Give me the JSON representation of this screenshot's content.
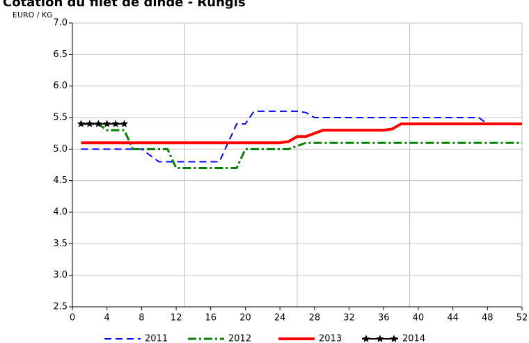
{
  "chart_data": {
    "type": "line",
    "title": "Cotation du filet de dinde - Rungis",
    "y_label": "EURO / KG",
    "x": [
      1,
      2,
      3,
      4,
      5,
      6,
      7,
      8,
      9,
      10,
      11,
      12,
      13,
      14,
      15,
      16,
      17,
      18,
      19,
      20,
      21,
      22,
      23,
      24,
      25,
      26,
      27,
      28,
      29,
      30,
      31,
      32,
      33,
      34,
      35,
      36,
      37,
      38,
      39,
      40,
      41,
      42,
      43,
      44,
      45,
      46,
      47,
      48,
      49,
      50,
      51,
      52
    ],
    "series": [
      {
        "name": "2011",
        "color": "#0000ff",
        "style": "dashed",
        "values": [
          5.0,
          5.0,
          5.0,
          5.0,
          5.0,
          5.0,
          5.0,
          5.0,
          4.9,
          4.8,
          4.8,
          4.8,
          4.8,
          4.8,
          4.8,
          4.8,
          4.8,
          5.1,
          5.4,
          5.4,
          5.6,
          5.6,
          5.6,
          5.6,
          5.6,
          5.6,
          5.58,
          5.5,
          5.5,
          5.5,
          5.5,
          5.5,
          5.5,
          5.5,
          5.5,
          5.5,
          5.5,
          5.5,
          5.5,
          5.5,
          5.5,
          5.5,
          5.5,
          5.5,
          5.5,
          5.5,
          5.5,
          5.4,
          5.4,
          5.4,
          5.4,
          5.4
        ]
      },
      {
        "name": "2012",
        "color": "#008000",
        "style": "dashdot",
        "values": [
          5.4,
          5.4,
          5.4,
          5.3,
          5.3,
          5.3,
          5.0,
          5.0,
          5.0,
          5.0,
          5.0,
          4.7,
          4.7,
          4.7,
          4.7,
          4.7,
          4.7,
          4.7,
          4.7,
          5.0,
          5.0,
          5.0,
          5.0,
          5.0,
          5.0,
          5.05,
          5.1,
          5.1,
          5.1,
          5.1,
          5.1,
          5.1,
          5.1,
          5.1,
          5.1,
          5.1,
          5.1,
          5.1,
          5.1,
          5.1,
          5.1,
          5.1,
          5.1,
          5.1,
          5.1,
          5.1,
          5.1,
          5.1,
          5.1,
          5.1,
          5.1,
          5.1
        ]
      },
      {
        "name": "2013",
        "color": "#ff0000",
        "style": "solid",
        "values": [
          5.1,
          5.1,
          5.1,
          5.1,
          5.1,
          5.1,
          5.1,
          5.1,
          5.1,
          5.1,
          5.1,
          5.1,
          5.1,
          5.1,
          5.1,
          5.1,
          5.1,
          5.1,
          5.1,
          5.1,
          5.1,
          5.1,
          5.1,
          5.1,
          5.12,
          5.2,
          5.2,
          5.25,
          5.3,
          5.3,
          5.3,
          5.3,
          5.3,
          5.3,
          5.3,
          5.3,
          5.32,
          5.4,
          5.4,
          5.4,
          5.4,
          5.4,
          5.4,
          5.4,
          5.4,
          5.4,
          5.4,
          5.4,
          5.4,
          5.4,
          5.4,
          5.4
        ]
      },
      {
        "name": "2014",
        "color": "#000000",
        "style": "stars",
        "values": [
          5.4,
          5.4,
          5.4,
          5.4,
          5.4,
          5.4,
          null,
          null,
          null,
          null,
          null,
          null,
          null,
          null,
          null,
          null,
          null,
          null,
          null,
          null,
          null,
          null,
          null,
          null,
          null,
          null,
          null,
          null,
          null,
          null,
          null,
          null,
          null,
          null,
          null,
          null,
          null,
          null,
          null,
          null,
          null,
          null,
          null,
          null,
          null,
          null,
          null,
          null,
          null,
          null,
          null,
          null
        ]
      }
    ],
    "xlim": [
      0,
      52
    ],
    "xticks": [
      0,
      4,
      8,
      12,
      16,
      20,
      24,
      28,
      32,
      36,
      40,
      44,
      48,
      52
    ],
    "xgrid": [
      13,
      26,
      39
    ],
    "ylim": [
      2.5,
      7.0
    ],
    "yticks": [
      2.5,
      {
        "value": 3.0,
        "label": "3.0"
      },
      3.5,
      {
        "value": 4.0,
        "label": "4.0"
      },
      4.5,
      {
        "value": 5.0,
        "label": "5.0"
      },
      5.5,
      {
        "value": 6.0,
        "label": "6.0"
      },
      6.5,
      {
        "value": 7.0,
        "label": "7.0"
      }
    ],
    "grid": true,
    "legend": "bottom"
  }
}
